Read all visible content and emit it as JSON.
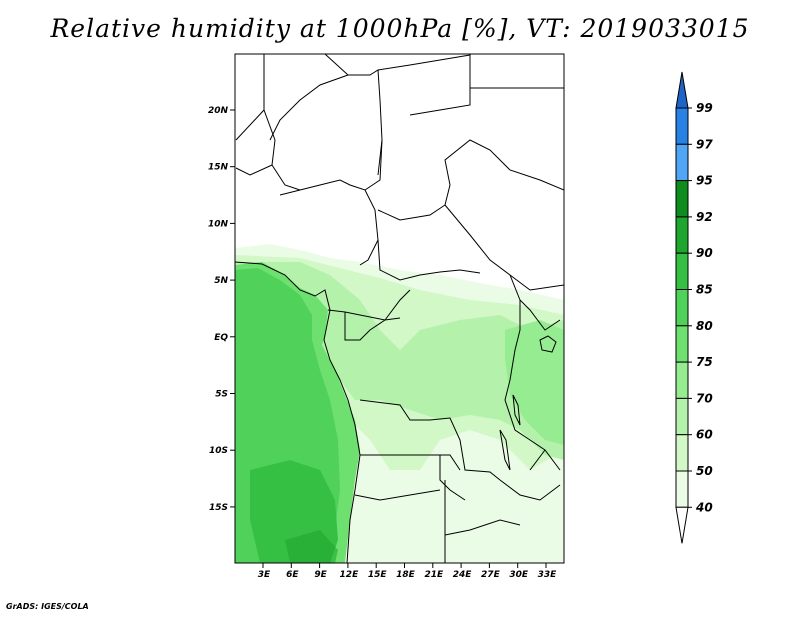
{
  "title": "Relative humidity at 1000hPa [%], VT: 2019033015",
  "footer": "GrADS: IGES/COLA",
  "map": {
    "lat_labels": [
      "20N",
      "15N",
      "10N",
      "5N",
      "EQ",
      "5S",
      "10S",
      "15S"
    ],
    "lon_labels": [
      "3E",
      "6E",
      "9E",
      "12E",
      "15E",
      "18E",
      "21E",
      "24E",
      "27E",
      "30E",
      "33E"
    ]
  },
  "colorbar": {
    "labels": [
      "99",
      "97",
      "95",
      "92",
      "90",
      "85",
      "80",
      "75",
      "70",
      "60",
      "50",
      "40"
    ],
    "colors": [
      "#1e64c8",
      "#2882e6",
      "#50a5f5",
      "#0f8c1e",
      "#1fa62e",
      "#36c043",
      "#50d25a",
      "#6ee070",
      "#96ec90",
      "#b4f2ab",
      "#d2f8c8",
      "#ebfce6",
      "#ffffff"
    ]
  }
}
